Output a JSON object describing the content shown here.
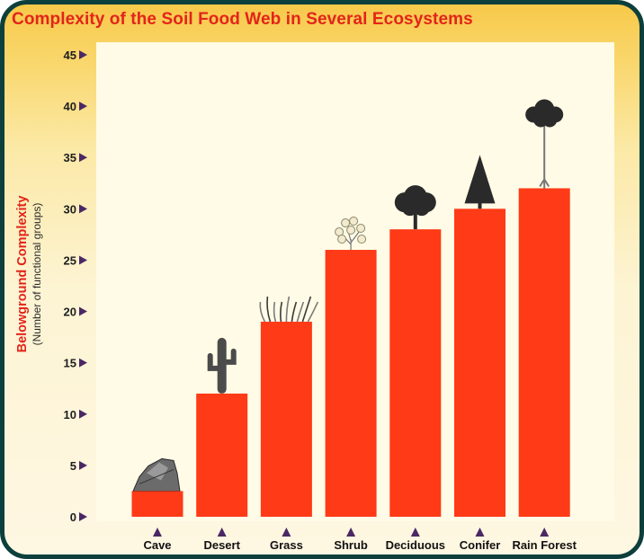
{
  "chart_data": {
    "type": "bar",
    "title": "Complexity of the Soil Food Web in Several Ecosystems",
    "ylabel": "Belowground Complexity",
    "ylabel_sub": "(Number of functional groups)",
    "xlabel": "",
    "categories": [
      "Cave",
      "Desert",
      "Grass",
      "Shrub",
      "Deciduous",
      "Conifer",
      "Rain Forest"
    ],
    "values": [
      2.5,
      12,
      19,
      26,
      28,
      30,
      32
    ],
    "ylim": [
      0,
      45
    ],
    "yticks": [
      0,
      5,
      10,
      15,
      20,
      25,
      30,
      35,
      40,
      45
    ],
    "icons": [
      "rock-icon",
      "cactus-icon",
      "grass-icon",
      "shrub-icon",
      "deciduous-tree-icon",
      "conifer-tree-icon",
      "rainforest-tree-icon"
    ],
    "grid": false,
    "legend": "none",
    "colors": {
      "bar": "#ff3a17",
      "plot_background": "#fffbe6",
      "marker": "#4a2864",
      "title": "#e3241a",
      "frame": "#0d3f3c"
    }
  }
}
